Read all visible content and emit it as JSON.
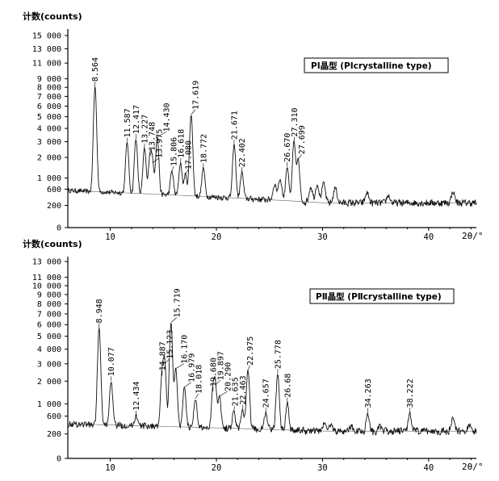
{
  "chart_data": [
    {
      "type": "line",
      "y_axis_title": "计数(counts)",
      "x_axis_label": "2θ/°",
      "legend": "PⅠ晶型 (PⅠcrystalline type)",
      "legend_placement": "top-right",
      "xlim": [
        6,
        44.5
      ],
      "x_ticks": [
        "10",
        "20",
        "30",
        "40"
      ],
      "y_ticks": [
        "0",
        "200",
        "600",
        "1 000",
        "2 000",
        "3 000",
        "4 000",
        "5 000",
        "6 000",
        "7 000",
        "8 000",
        "9 000",
        "11 000",
        "13 000",
        "15 000"
      ],
      "scale": "square-root",
      "peaks": [
        {
          "x": 8.564,
          "y": 8100,
          "label": "8.564"
        },
        {
          "x": 11.587,
          "y": 2950,
          "label": "11.587"
        },
        {
          "x": 12.417,
          "y": 3200,
          "label": "12.417"
        },
        {
          "x": 13.227,
          "y": 2550,
          "label": "13.227"
        },
        {
          "x": 13.748,
          "y": 2100,
          "label": "13.748"
        },
        {
          "x": 13.975,
          "y": 1700,
          "label": "13.975"
        },
        {
          "x": 14.43,
          "y": 3350,
          "label": "14.430"
        },
        {
          "x": 15.806,
          "y": 1300,
          "label": "15.806"
        },
        {
          "x": 16.618,
          "y": 1700,
          "label": "16.618"
        },
        {
          "x": 17.08,
          "y": 1150,
          "label": "17.080"
        },
        {
          "x": 17.619,
          "y": 5200,
          "label": "17.619"
        },
        {
          "x": 18.772,
          "y": 1450,
          "label": "18.772"
        },
        {
          "x": 21.671,
          "y": 2800,
          "label": "21.671"
        },
        {
          "x": 22.402,
          "y": 1250,
          "label": "22.402"
        },
        {
          "x": 26.67,
          "y": 1500,
          "label": "26.670"
        },
        {
          "x": 27.31,
          "y": 3000,
          "label": "27.310"
        },
        {
          "x": 27.699,
          "y": 1900,
          "label": "27.699"
        }
      ]
    },
    {
      "type": "line",
      "y_axis_title": "计数(counts)",
      "x_axis_label": "2θ/°",
      "legend": "PⅡ晶型 (PⅡcrystalline type)",
      "legend_placement": "top-right",
      "xlim": [
        6,
        44.5
      ],
      "x_ticks": [
        "10",
        "20",
        "30",
        "40"
      ],
      "y_ticks": [
        "0",
        "200",
        "600",
        "1 000",
        "2 000",
        "3 000",
        "4 000",
        "5 000",
        "6 000",
        "7 000",
        "8 000",
        "9 000",
        "10 000",
        "11 000",
        "13 000"
      ],
      "scale": "square-root",
      "peaks": [
        {
          "x": 8.948,
          "y": 5700,
          "label": "8.948"
        },
        {
          "x": 10.077,
          "y": 2000,
          "label": "10.077"
        },
        {
          "x": 12.434,
          "y": 620,
          "label": "12.434"
        },
        {
          "x": 14.887,
          "y": 2300,
          "label": "14.887"
        },
        {
          "x": 15.123,
          "y": 3000,
          "label": "15.123"
        },
        {
          "x": 15.719,
          "y": 6200,
          "label": "15.719"
        },
        {
          "x": 16.17,
          "y": 2700,
          "label": "16.170"
        },
        {
          "x": 16.979,
          "y": 1700,
          "label": "16.979"
        },
        {
          "x": 18.018,
          "y": 1200,
          "label": "18.018"
        },
        {
          "x": 19.68,
          "y": 1500,
          "label": "19.680"
        },
        {
          "x": 19.897,
          "y": 1800,
          "label": "19.897"
        },
        {
          "x": 20.29,
          "y": 1300,
          "label": "20.290"
        },
        {
          "x": 21.635,
          "y": 750,
          "label": "21.635"
        },
        {
          "x": 22.463,
          "y": 800,
          "label": "22.463"
        },
        {
          "x": 22.975,
          "y": 2600,
          "label": "22.975"
        },
        {
          "x": 24.657,
          "y": 700,
          "label": "24.657"
        },
        {
          "x": 25.778,
          "y": 2400,
          "label": "25.778"
        },
        {
          "x": 26.68,
          "y": 1050,
          "label": "26.68"
        },
        {
          "x": 34.263,
          "y": 700,
          "label": "34.263"
        },
        {
          "x": 38.222,
          "y": 700,
          "label": "38.222"
        }
      ]
    }
  ]
}
